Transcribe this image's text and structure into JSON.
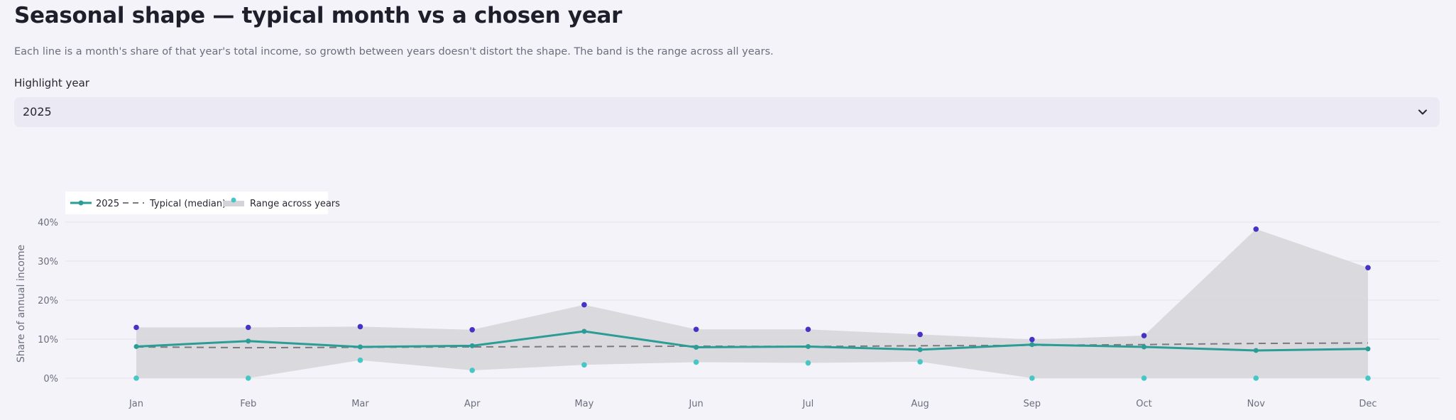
{
  "page": {
    "title": "Seasonal shape — typical month vs a chosen year",
    "subtitle": "Each line is a month's share of that year's total income, so growth between years doesn't distort the shape. The band is the range across all years."
  },
  "selector": {
    "label": "Highlight year",
    "value": "2025"
  },
  "colors": {
    "highlight": "#2a9d97",
    "median": "#7a7a80",
    "band": "#d5d3d9",
    "max_points": "#4433c6",
    "min_points": "#46c6c4",
    "grid": "#e4e2ea"
  },
  "chart_data": {
    "type": "line",
    "categories": [
      "Jan",
      "Feb",
      "Mar",
      "Apr",
      "May",
      "Jun",
      "Jul",
      "Aug",
      "Sep",
      "Oct",
      "Nov",
      "Dec"
    ],
    "ylabel": "Share of annual income",
    "ylim": [
      0,
      40
    ],
    "yticks": [
      "0%",
      "10%",
      "20%",
      "30%",
      "40%"
    ],
    "y_tick_values": [
      0,
      10,
      20,
      30,
      40
    ],
    "grid": true,
    "legend_placement": "top-left",
    "legend": [
      "2025",
      "Typical (median)",
      "Range across years"
    ],
    "series": [
      {
        "name": "2025",
        "style": "solid-with-markers",
        "values": [
          8.1,
          9.5,
          8.0,
          8.3,
          12.0,
          7.9,
          8.1,
          7.3,
          8.6,
          8.0,
          7.1,
          7.5
        ]
      },
      {
        "name": "Typical (median)",
        "style": "dashed",
        "values": [
          8.0,
          7.8,
          7.9,
          8.0,
          8.1,
          8.2,
          8.1,
          8.3,
          8.4,
          8.6,
          8.9,
          9.0
        ]
      }
    ],
    "band": {
      "name": "Range across years",
      "upper": [
        13.0,
        13.0,
        13.2,
        12.4,
        18.8,
        12.5,
        12.5,
        11.2,
        9.9,
        10.9,
        38.2,
        28.3
      ],
      "lower": [
        0.0,
        0.0,
        4.6,
        2.0,
        3.4,
        4.1,
        3.9,
        4.2,
        0.0,
        0.0,
        0.0,
        0.0
      ]
    }
  }
}
